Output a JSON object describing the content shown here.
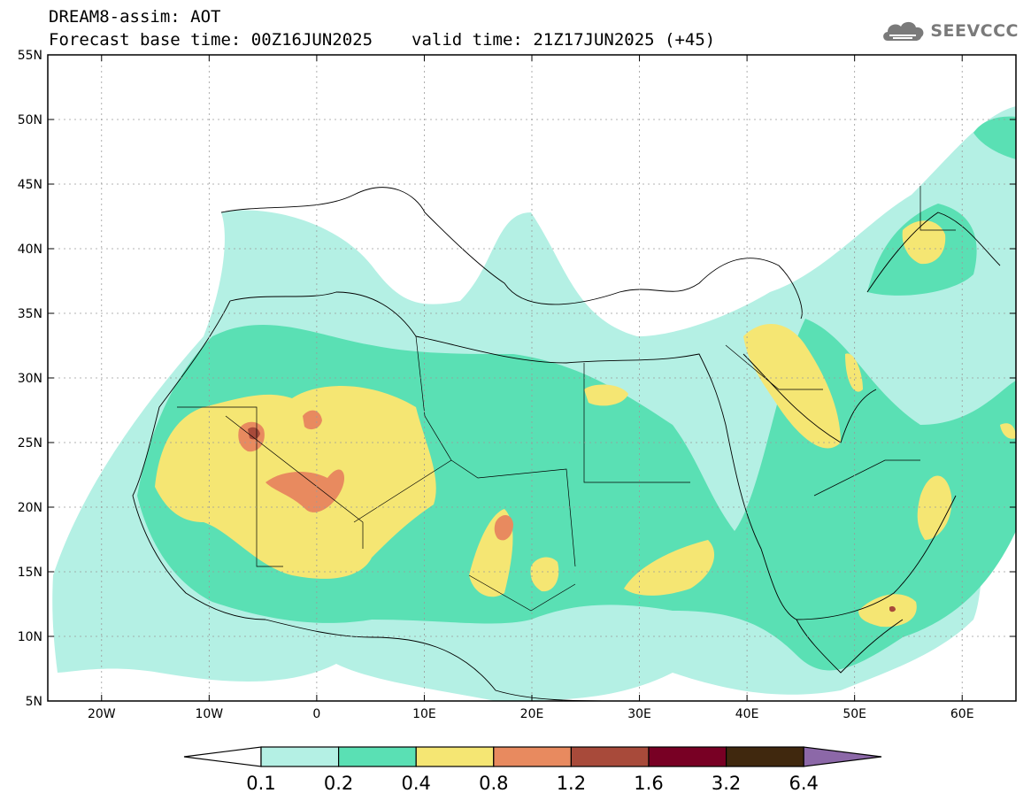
{
  "header": {
    "model_line": "DREAM8-assim: AOT",
    "base_time": "Forecast base time: 00Z16JUN2025",
    "valid_time": "valid time: 21Z17JUN2025 (+45)",
    "logo_text": "SEEVCCC"
  },
  "map": {
    "lat_labels": [
      "55N",
      "50N",
      "45N",
      "40N",
      "35N",
      "30N",
      "25N",
      "20N",
      "15N",
      "10N",
      "5N"
    ],
    "lon_labels": [
      "20W",
      "10W",
      "0",
      "10E",
      "20E",
      "30E",
      "40E",
      "50E",
      "60E"
    ],
    "lon_range": [
      -25,
      65
    ],
    "lat_range": [
      5,
      55
    ]
  },
  "colorbar": {
    "labels": [
      "0.1",
      "0.2",
      "0.4",
      "0.8",
      "1.2",
      "1.6",
      "3.2",
      "6.4"
    ],
    "colors": [
      "#ffffff",
      "#b4f0e4",
      "#5ae0b4",
      "#f5e673",
      "#e88a5f",
      "#a84a3a",
      "#780024",
      "#40280e",
      "#8c68a8"
    ]
  }
}
